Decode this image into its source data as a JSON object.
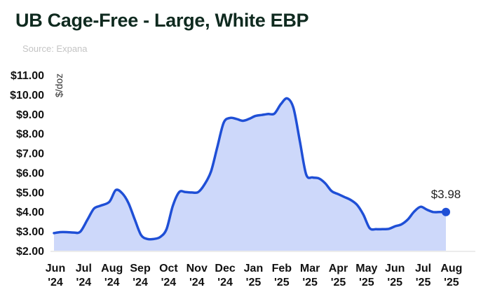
{
  "chart_data": {
    "type": "area",
    "title": "UB Cage-Free - Large, White EBP",
    "source": "Source: Expana",
    "ylabel": "$/doz",
    "ylim": [
      2,
      11
    ],
    "yticks": [
      "$2.00",
      "$3.00",
      "$4.00",
      "$5.00",
      "$6.00",
      "$7.00",
      "$8.00",
      "$9.00",
      "$10.00",
      "$11.00"
    ],
    "xticks": [
      {
        "month": "Jun",
        "year": "'24"
      },
      {
        "month": "Jul",
        "year": "'24"
      },
      {
        "month": "Aug",
        "year": "'24"
      },
      {
        "month": "Sep",
        "year": "'24"
      },
      {
        "month": "Oct",
        "year": "'24"
      },
      {
        "month": "Nov",
        "year": "'24"
      },
      {
        "month": "Dec",
        "year": "'24"
      },
      {
        "month": "Jan",
        "year": "'25"
      },
      {
        "month": "Feb",
        "year": "'25"
      },
      {
        "month": "Mar",
        "year": "'25"
      },
      {
        "month": "Apr",
        "year": "'25"
      },
      {
        "month": "May",
        "year": "'25"
      },
      {
        "month": "Jun",
        "year": "'25"
      },
      {
        "month": "Jul",
        "year": "'25"
      },
      {
        "month": "Aug",
        "year": "'25"
      }
    ],
    "series": [
      {
        "x": [
          "2024-06-01",
          "2024-06-08",
          "2024-06-15",
          "2024-06-23",
          "2024-06-30",
          "2024-07-08",
          "2024-07-15",
          "2024-07-22",
          "2024-08-01",
          "2024-08-08",
          "2024-08-15",
          "2024-08-22",
          "2024-08-29",
          "2024-09-05",
          "2024-09-12",
          "2024-09-19",
          "2024-09-26",
          "2024-10-03",
          "2024-10-10",
          "2024-10-17",
          "2024-10-24",
          "2024-10-31",
          "2024-11-07",
          "2024-11-14",
          "2024-11-21",
          "2024-11-28",
          "2024-12-05",
          "2024-12-12",
          "2024-12-19",
          "2024-12-26",
          "2025-01-02",
          "2025-01-09",
          "2025-01-16",
          "2025-01-23",
          "2025-01-30",
          "2025-02-06",
          "2025-02-13",
          "2025-02-20",
          "2025-02-27",
          "2025-03-06",
          "2025-03-13",
          "2025-03-20",
          "2025-03-27",
          "2025-04-03",
          "2025-04-10",
          "2025-04-17",
          "2025-04-24",
          "2025-05-01",
          "2025-05-08",
          "2025-05-15",
          "2025-05-22",
          "2025-05-29",
          "2025-06-05",
          "2025-06-12",
          "2025-06-19",
          "2025-06-26",
          "2025-07-03",
          "2025-07-10",
          "2025-07-17",
          "2025-07-24",
          "2025-07-31",
          "2025-08-07"
        ],
        "values": [
          2.9,
          2.95,
          2.95,
          2.93,
          2.97,
          3.6,
          4.15,
          4.3,
          4.5,
          5.1,
          4.95,
          4.45,
          3.6,
          2.8,
          2.6,
          2.6,
          2.7,
          3.1,
          4.3,
          5.0,
          5.0,
          4.98,
          5.0,
          5.4,
          6.05,
          7.3,
          8.55,
          8.8,
          8.75,
          8.65,
          8.75,
          8.9,
          8.95,
          9.0,
          9.02,
          9.5,
          9.8,
          9.3,
          7.6,
          5.9,
          5.75,
          5.7,
          5.45,
          5.05,
          4.9,
          4.75,
          4.6,
          4.35,
          3.85,
          3.15,
          3.1,
          3.1,
          3.12,
          3.25,
          3.35,
          3.6,
          4.0,
          4.25,
          4.1,
          3.98,
          3.98,
          3.98
        ]
      }
    ],
    "end_label": "$3.98",
    "colors": {
      "line": "#1f4fd6",
      "fill": "#cdd8fa",
      "axis": "#e6e6e6"
    }
  }
}
